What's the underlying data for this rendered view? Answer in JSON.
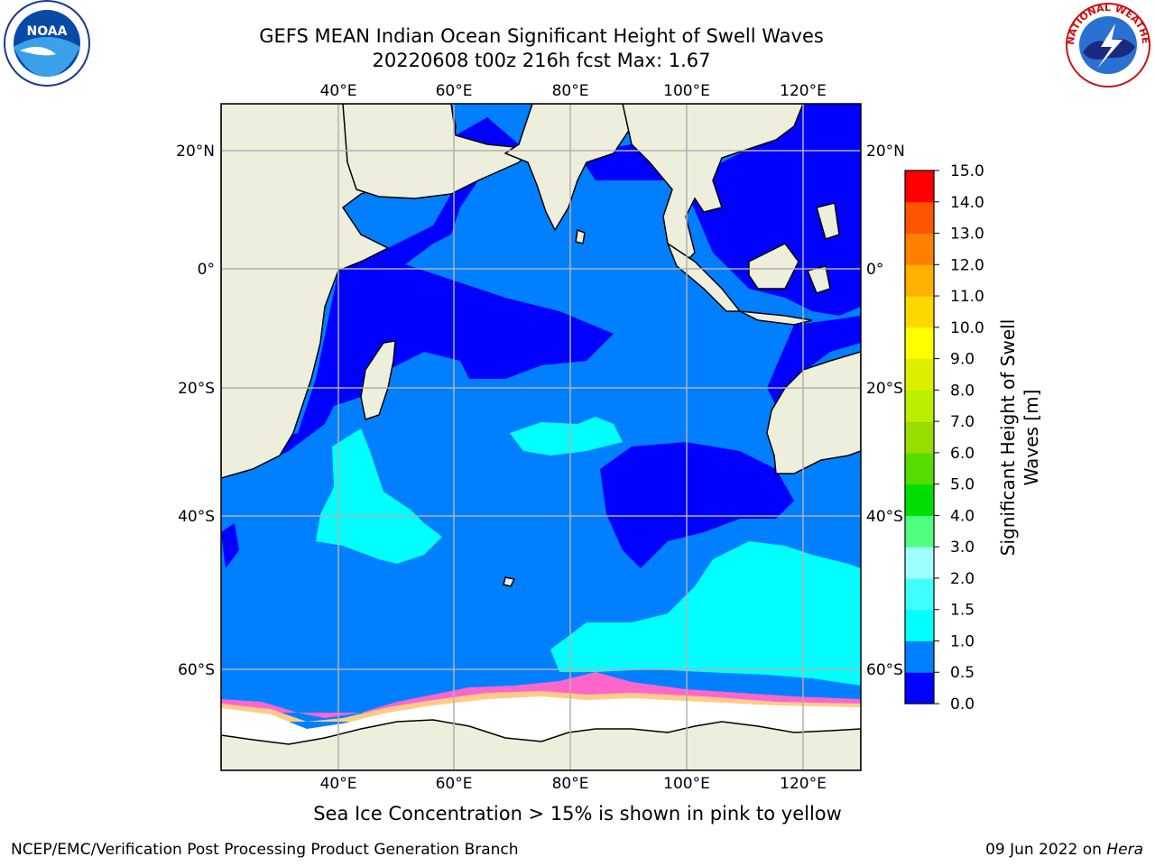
{
  "title": {
    "line1": "GEFS MEAN Indian Ocean Significant Height of Swell Waves",
    "line2": "20220608 t00z 216h fcst   Max: 1.67"
  },
  "axes": {
    "lon_labels": [
      "40°E",
      "60°E",
      "80°E",
      "100°E",
      "120°E"
    ],
    "lat_labels": [
      "20°N",
      "0°",
      "20°S",
      "40°S",
      "60°S"
    ]
  },
  "colorbar": {
    "label_line1": "Significant Height of Swell",
    "label_line2": "Waves [m]",
    "levels": [
      "0.0",
      "0.5",
      "1.0",
      "1.5",
      "2.0",
      "3.0",
      "4.0",
      "5.0",
      "6.0",
      "7.0",
      "8.0",
      "9.0",
      "10.0",
      "11.0",
      "12.0",
      "13.0",
      "14.0",
      "15.0"
    ],
    "colors": [
      "#0000ff",
      "#0080ff",
      "#00ffff",
      "#40ffff",
      "#a0ffff",
      "#50ff80",
      "#00dd00",
      "#55dd00",
      "#99dd00",
      "#bbee00",
      "#ddee00",
      "#ffff00",
      "#ffd700",
      "#ffb000",
      "#ff8000",
      "#ff5500",
      "#ff0000"
    ]
  },
  "map_colors": {
    "ocean_low": "#0000ff",
    "ocean_mid": "#0080ff",
    "ocean_high": "#00ffff",
    "land": "#eeeedd",
    "ice": "#ffffff",
    "ice_edge": "#ff66cc"
  },
  "logos": {
    "noaa_text": "NOAA",
    "nws_text": "NATIONAL WEATHER SERVICE"
  },
  "caption": "Sea Ice Concentration > 15% is shown in pink to yellow",
  "credit": "NCEP/EMC/Verification Post Processing Product Generation Branch",
  "date_text": "09 Jun 2022 on ",
  "date_host": "Hera"
}
